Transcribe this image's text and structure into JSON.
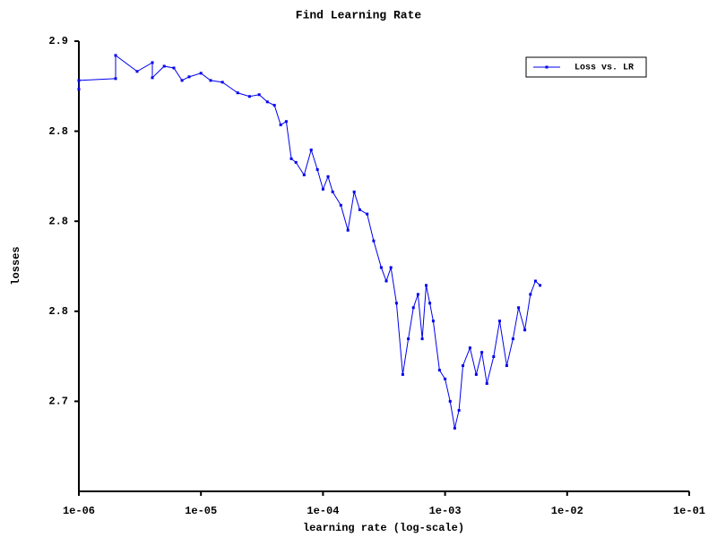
{
  "chart_data": {
    "type": "line",
    "title": "Find Learning Rate",
    "x_label": "learning rate (log-scale)",
    "y_label": "losses",
    "xscale": "log",
    "legend": "upper right",
    "xlim": [
      1e-06,
      0.1
    ],
    "xticks": [
      {
        "value": 1e-06,
        "label": "1e-06"
      },
      {
        "value": 1e-05,
        "label": "1e-05"
      },
      {
        "value": 0.0001,
        "label": "1e-04"
      },
      {
        "value": 0.001,
        "label": "1e-03"
      },
      {
        "value": 0.01,
        "label": "1e-02"
      },
      {
        "value": 0.1,
        "label": "1e-01"
      }
    ],
    "ylim": [
      2.65,
      2.9
    ],
    "yticks": [
      2.9,
      {
        "value": 2.85,
        "label": "2.8"
      },
      2.8,
      {
        "value": 2.75,
        "label": "2.8"
      },
      2.7
    ],
    "series": [
      {
        "name": "Loss vs. LR",
        "color": "#0000ee",
        "x": [
          1e-06,
          1e-06,
          2e-06,
          2e-06,
          3e-06,
          4e-06,
          4e-06,
          5e-06,
          6e-06,
          7e-06,
          8e-06,
          1e-05,
          1.2e-05,
          1.5e-05,
          2e-05,
          2.5e-05,
          3e-05,
          3.5e-05,
          4e-05,
          4.5e-05,
          5e-05,
          5.5e-05,
          6e-05,
          7e-05,
          8e-05,
          9e-05,
          0.0001,
          0.00011,
          0.00012,
          0.00014,
          0.00016,
          0.00018,
          0.0002,
          0.00023,
          0.00026,
          0.0003,
          0.00033,
          0.00036,
          0.0004,
          0.00045,
          0.0005,
          0.00055,
          0.0006,
          0.00065,
          0.0007,
          0.00075,
          0.0008,
          0.0009,
          0.001,
          0.0011,
          0.0012,
          0.0013,
          0.0014,
          0.0016,
          0.0018,
          0.002,
          0.0022,
          0.0025,
          0.0028,
          0.0032,
          0.0036,
          0.004,
          0.0045,
          0.005,
          0.0055,
          0.006
        ],
        "values": [
          2.8733,
          2.8782,
          2.8792,
          2.8921,
          2.8832,
          2.8881,
          2.8797,
          2.8861,
          2.8851,
          2.8782,
          2.8802,
          2.8822,
          2.8782,
          2.8772,
          2.8713,
          2.8693,
          2.8703,
          2.8663,
          2.8644,
          2.8535,
          2.8554,
          2.8347,
          2.8327,
          2.8257,
          2.8396,
          2.8287,
          2.8178,
          2.8248,
          2.8163,
          2.8089,
          2.795,
          2.8163,
          2.8064,
          2.804,
          2.7891,
          2.7743,
          2.7668,
          2.7743,
          2.7545,
          2.7149,
          2.7347,
          2.752,
          2.7594,
          2.7347,
          2.7644,
          2.7545,
          2.7446,
          2.7173,
          2.7124,
          2.7,
          2.6851,
          2.695,
          2.7198,
          2.7297,
          2.7149,
          2.7272,
          2.7099,
          2.7248,
          2.7446,
          2.7198,
          2.7347,
          2.752,
          2.7396,
          2.7594,
          2.7668,
          2.7644
        ]
      }
    ]
  }
}
